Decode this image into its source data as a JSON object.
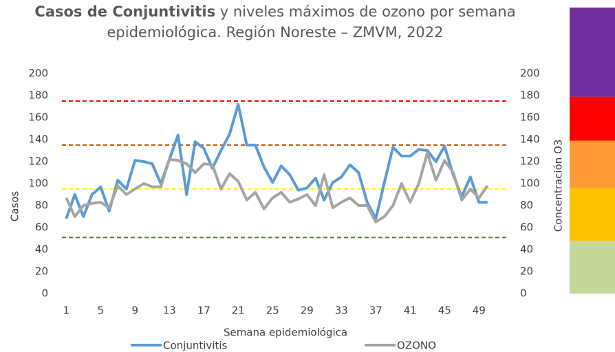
{
  "chart_data": {
    "type": "line",
    "title": {
      "bold": "Casos de Conjuntivitis",
      "line1": " y niveles máximos de ozono por semana",
      "line2": "epidemiológica. Región Noreste – ZMVM, 2022"
    },
    "x_label": "Semana epidemiológica",
    "y_label": "Casos",
    "y2_label": "Concentración O3",
    "categories": [
      "1",
      null,
      null,
      null,
      "5",
      null,
      null,
      null,
      "9",
      null,
      null,
      null,
      "13",
      null,
      null,
      null,
      "17",
      null,
      null,
      null,
      "21",
      null,
      null,
      null,
      "25",
      null,
      null,
      null,
      "29",
      null,
      null,
      null,
      "33",
      null,
      null,
      null,
      "37",
      null,
      null,
      null,
      "41",
      null,
      null,
      null,
      "45",
      null,
      null,
      null,
      "49",
      null,
      null,
      null
    ],
    "ylim": [
      0,
      200
    ],
    "yticks": [
      0,
      20,
      40,
      60,
      80,
      100,
      120,
      140,
      160,
      180,
      200
    ],
    "y2lim": [
      0,
      200
    ],
    "y2ticks": [
      0,
      20,
      40,
      60,
      80,
      100,
      120,
      140,
      160,
      180,
      200
    ],
    "series": [
      {
        "name": "Conjuntivitis",
        "color": "#5b9bd5",
        "values": [
          68,
          90,
          70,
          90,
          97,
          75,
          103,
          95,
          121,
          120,
          118,
          100,
          122,
          144,
          90,
          138,
          132,
          114,
          130,
          145,
          172,
          135,
          135,
          115,
          101,
          116,
          108,
          94,
          96,
          105,
          85,
          101,
          106,
          117,
          110,
          83,
          68,
          101,
          133,
          125,
          125,
          131,
          130,
          120,
          134,
          108,
          88,
          106,
          83,
          83,
          null,
          null
        ]
      },
      {
        "name": "OZONO",
        "color": "#a5a5a5",
        "axis": "y2",
        "values": [
          87,
          70,
          80,
          82,
          83,
          78,
          98,
          90,
          95,
          100,
          97,
          97,
          122,
          121,
          118,
          110,
          118,
          117,
          95,
          109,
          102,
          85,
          92,
          77,
          87,
          92,
          83,
          86,
          90,
          80,
          108,
          78,
          83,
          87,
          80,
          80,
          65,
          70,
          80,
          100,
          83,
          100,
          128,
          103,
          121,
          110,
          85,
          95,
          87,
          98,
          null,
          null
        ]
      }
    ],
    "thresholds": [
      {
        "value": 175,
        "color": "#ff0000"
      },
      {
        "value": 135,
        "color": "#c55a11"
      },
      {
        "value": 95,
        "color": "#ffff00"
      },
      {
        "value": 51,
        "color": "#548235"
      }
    ],
    "bands": [
      {
        "from": 0,
        "to": 48,
        "color": "#c5d89a"
      },
      {
        "from": 48,
        "to": 96,
        "color": "#ffc000"
      },
      {
        "from": 96,
        "to": 139,
        "color": "#ff9933"
      },
      {
        "from": 139,
        "to": 179,
        "color": "#ff0000"
      },
      {
        "from": 179,
        "to": 260,
        "color": "#7030a0"
      }
    ]
  }
}
